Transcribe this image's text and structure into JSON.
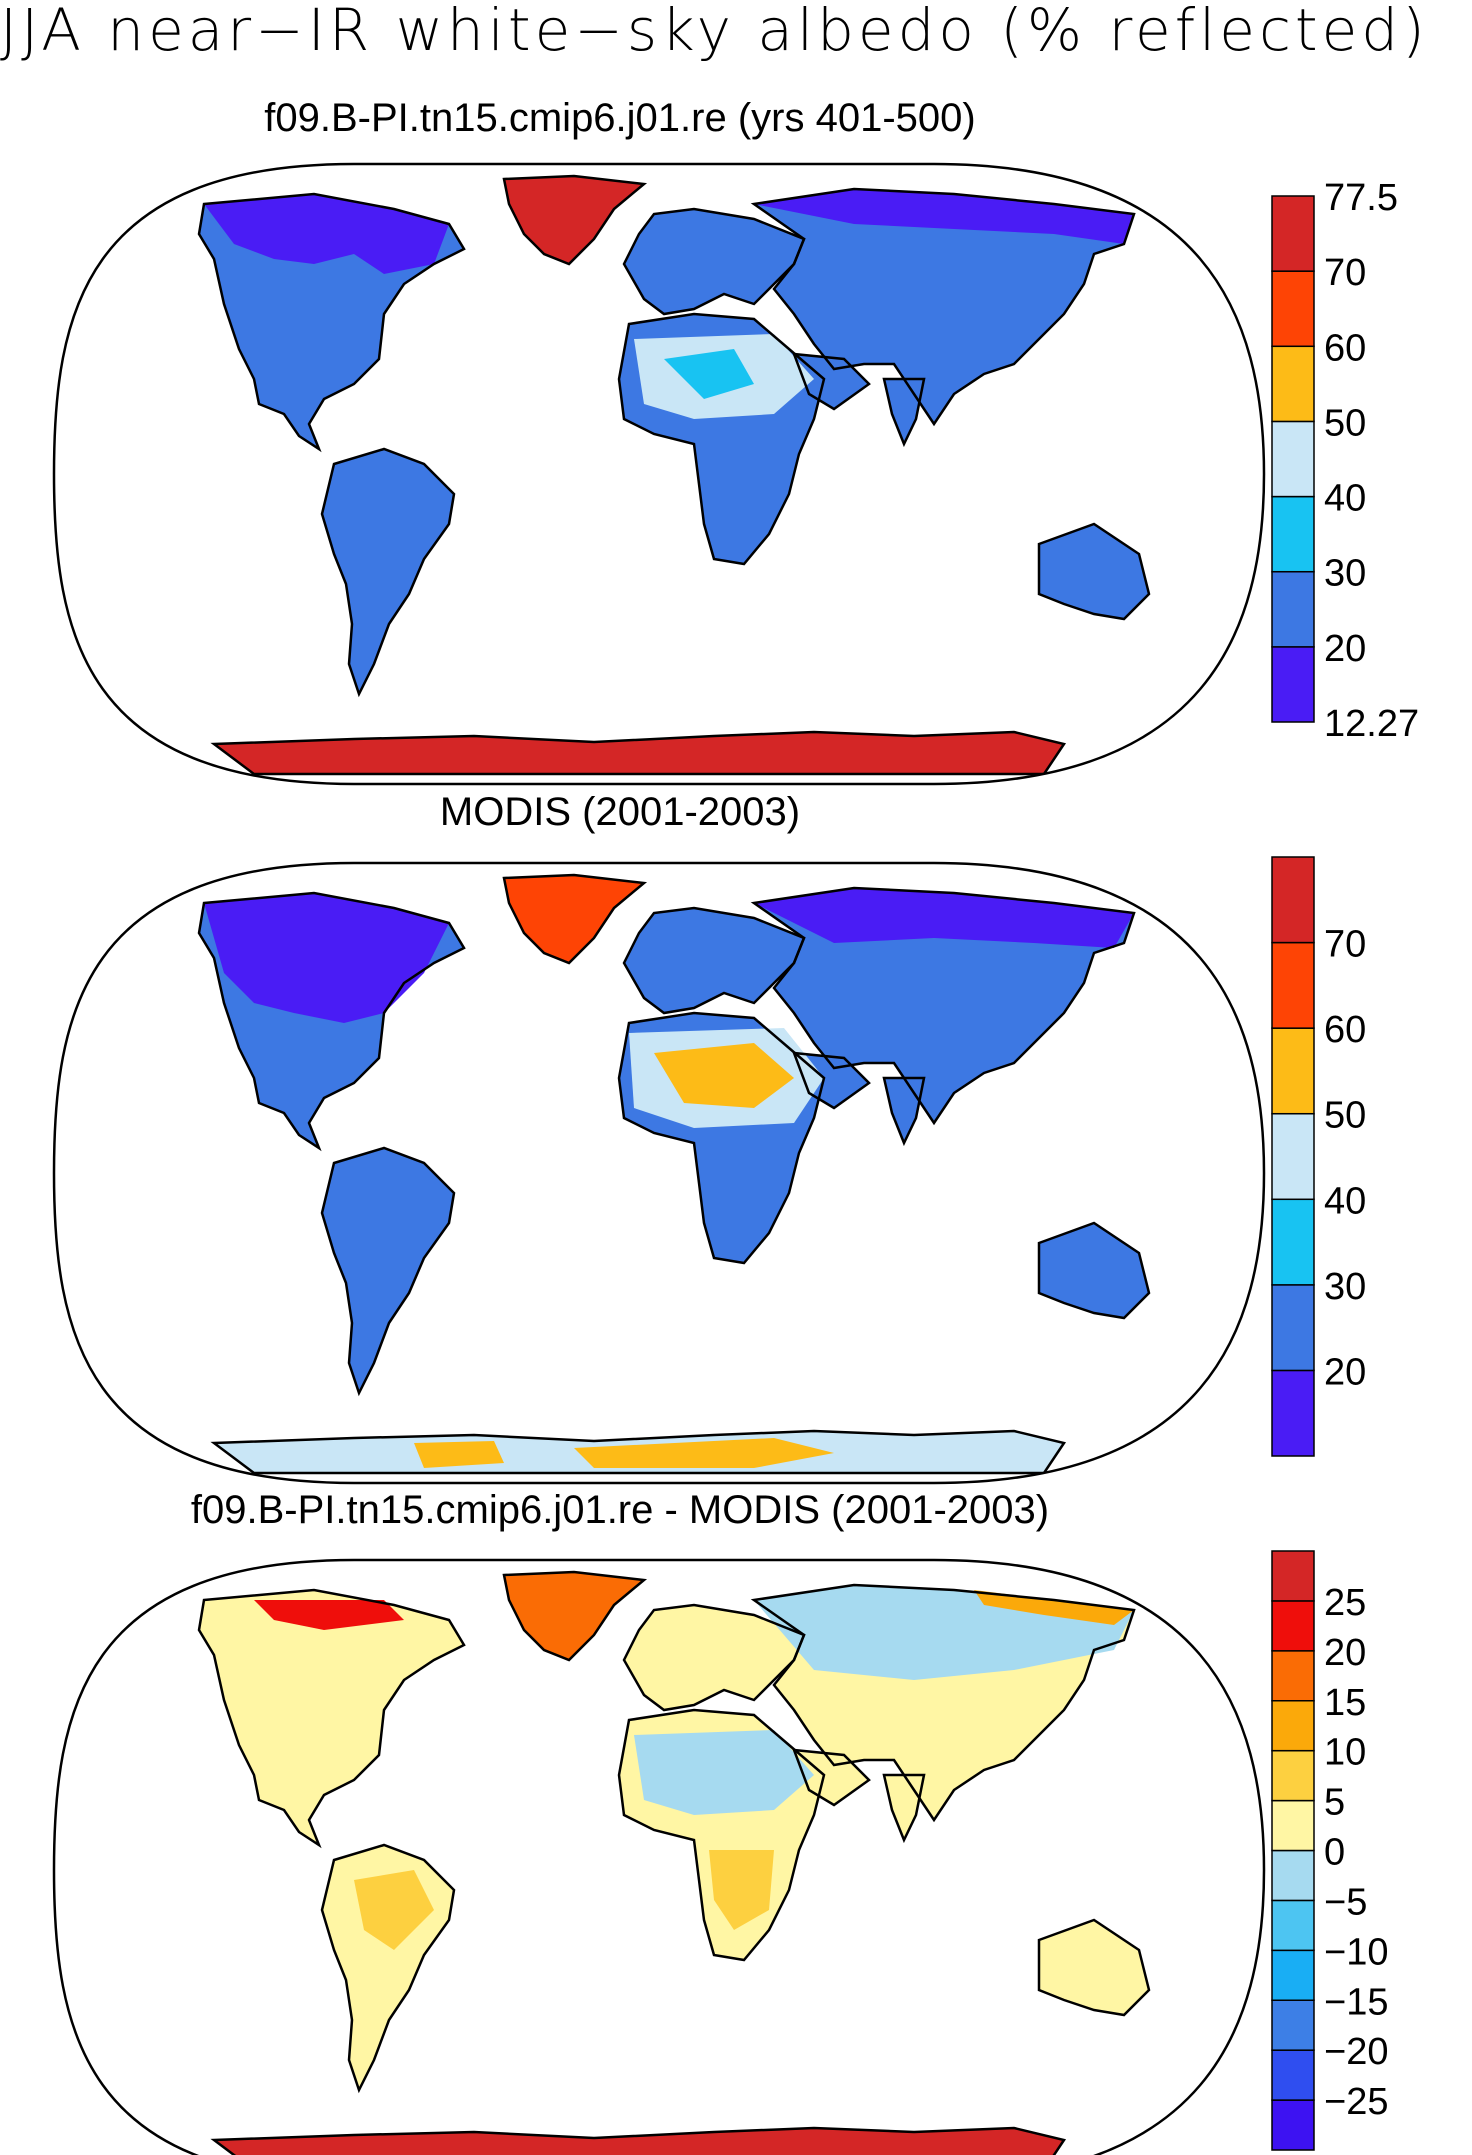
{
  "title": "JJA near−IR white−sky albedo (% reflected)",
  "colors": {
    "albedo": [
      "#4a1cf5",
      "#3d78e3",
      "#18c3f2",
      "#c9e6f6",
      "#fdbb17",
      "#fe4405",
      "#d42626"
    ],
    "diff": [
      "#3d12f2",
      "#2f4ef0",
      "#3d7fe6",
      "#19aef4",
      "#4dc5f2",
      "#a6daf0",
      "#fff6a4",
      "#fdd040",
      "#fba90a",
      "#fa6c05",
      "#ef0e0b",
      "#d42626"
    ]
  },
  "panels": [
    {
      "title": "f09.B-PI.tn15.cmip6.j01.re (yrs 401-500)",
      "colorbar": {
        "labels": [
          "77.5",
          "70",
          "60",
          "50",
          "40",
          "30",
          "20",
          "12.27"
        ]
      }
    },
    {
      "title": "MODIS (2001-2003)",
      "colorbar": {
        "labels": [
          "70",
          "60",
          "50",
          "40",
          "30",
          "20"
        ]
      }
    },
    {
      "title": "f09.B-PI.tn15.cmip6.j01.re - MODIS (2001-2003)",
      "colorbar": {
        "labels": [
          "25",
          "20",
          "15",
          "10",
          "5",
          "0",
          "−5",
          "−10",
          "−15",
          "−20",
          "−25"
        ]
      }
    }
  ]
}
